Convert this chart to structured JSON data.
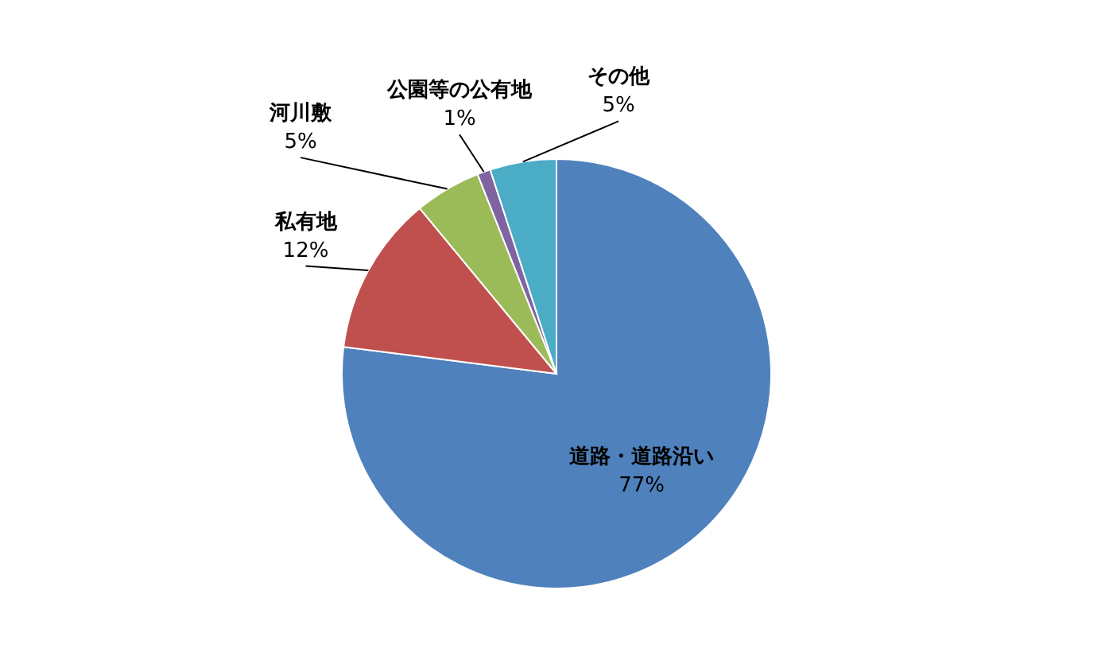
{
  "chart_data": {
    "type": "pie",
    "categories": [
      "道路・道路沿い",
      "私有地",
      "河川敷",
      "公園等の公有地",
      "その他"
    ],
    "values": [
      77,
      12,
      5,
      1,
      5
    ],
    "value_labels": [
      "77%",
      "12%",
      "5%",
      "1%",
      "5%"
    ],
    "colors": [
      "#4f81bd",
      "#c0504d",
      "#9bbb59",
      "#8064a2",
      "#4bacc6"
    ]
  }
}
